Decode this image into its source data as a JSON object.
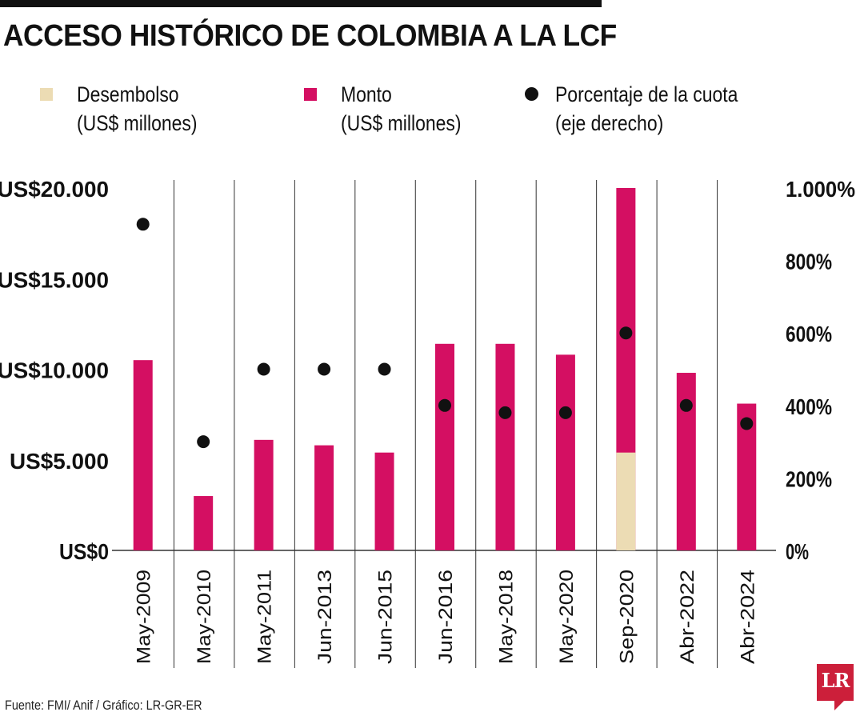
{
  "title": "ACCESO HISTÓRICO DE COLOMBIA A LA LCF",
  "legend": {
    "desembolso": {
      "label": "Desembolso",
      "sub": "(US$ millones)"
    },
    "monto": {
      "label": "Monto",
      "sub": "(US$ millones)"
    },
    "porcentaje": {
      "label": "Porcentaje de la cuota",
      "sub": "(eje derecho)"
    }
  },
  "source": "Fuente: FMI/ Anif / Gráfico: LR-GR-ER",
  "logo": "LR",
  "colors": {
    "monto": "#d40f62",
    "desembolso": "#ecdcb4",
    "dot": "#111111",
    "grid": "#333333"
  },
  "chart_data": {
    "type": "bar",
    "categories": [
      "May-2009",
      "May-2010",
      "May-2011",
      "Jun-2013",
      "Jun-2015",
      "Jun-2016",
      "May-2018",
      "May-2020",
      "Sep-2020",
      "Abr-2022",
      "Abr-2024"
    ],
    "series": [
      {
        "name": "Monto (US$ millones)",
        "axis": "left",
        "values": [
          10500,
          3000,
          6100,
          5800,
          5400,
          11400,
          11400,
          10800,
          20000,
          9800,
          8100
        ]
      },
      {
        "name": "Desembolso (US$ millones)",
        "axis": "left",
        "values": [
          0,
          0,
          0,
          0,
          0,
          0,
          0,
          0,
          5400,
          0,
          0
        ]
      },
      {
        "name": "Porcentaje de la cuota (eje derecho)",
        "axis": "right",
        "type": "scatter",
        "values": [
          900,
          300,
          500,
          500,
          500,
          400,
          380,
          380,
          600,
          400,
          350
        ]
      }
    ],
    "ylim": [
      0,
      20000
    ],
    "y2lim": [
      0,
      1000
    ],
    "yticks": [
      0,
      5000,
      10000,
      15000,
      20000
    ],
    "y2ticks": [
      0,
      200,
      400,
      600,
      800,
      1000
    ],
    "yticklabels": [
      "US$0",
      "US$5.000",
      "US$10.000",
      "US$15.000",
      "US$20.000"
    ],
    "y2ticklabels": [
      "0%",
      "200%",
      "400%",
      "600%",
      "800%",
      "1.000%"
    ],
    "grid": "vertical separators"
  }
}
